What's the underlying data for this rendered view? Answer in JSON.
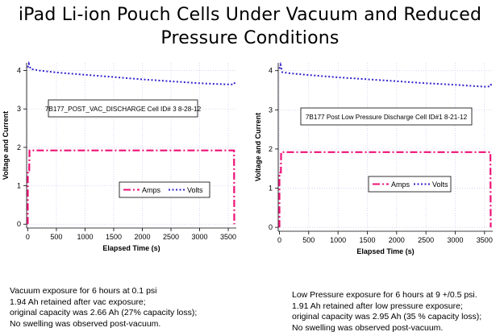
{
  "title": {
    "line1": "iPad Li-ion Pouch Cells Under Vacuum and Reduced",
    "line2": "Pressure Conditions"
  },
  "chart_data": [
    {
      "type": "line",
      "annotation": "7B177_POST_VAC_DISCHARGE Cell ID# 3 8-28-12",
      "xlabel": "Elapsed Time (s)",
      "ylabel": "Voltage and Current",
      "xlim": [
        -20,
        3640
      ],
      "ylim": [
        -0.1,
        4.2
      ],
      "xticks": [
        0,
        500,
        1000,
        1500,
        2000,
        2500,
        3000,
        3500
      ],
      "yticks": [
        0,
        1,
        2,
        3,
        4
      ],
      "legend": {
        "position": "lower-center",
        "entries": [
          "Amps",
          "Volts"
        ]
      },
      "grid": true,
      "series": [
        {
          "name": "Amps",
          "color": "#ee1177",
          "style": "dash-dot",
          "x": [
            0,
            1,
            25,
            30,
            3590,
            3600,
            3605
          ],
          "y": [
            0,
            1.4,
            1.4,
            1.92,
            1.92,
            1.92,
            0
          ]
        },
        {
          "name": "Volts",
          "color": "#3322cc",
          "style": "dotted",
          "x": [
            0,
            20,
            50,
            200,
            500,
            1000,
            1500,
            2000,
            2500,
            3000,
            3300,
            3500,
            3600,
            3620
          ],
          "y": [
            4.08,
            4.18,
            4.04,
            4.0,
            3.95,
            3.89,
            3.83,
            3.77,
            3.72,
            3.67,
            3.65,
            3.64,
            3.64,
            3.71
          ]
        }
      ]
    },
    {
      "type": "line",
      "annotation": "7B177 Post Low Pressure Discharge Cell ID#1 8-21-12",
      "xlabel": "Elapsed Time (s)",
      "ylabel": "Voltage and Current",
      "xlim": [
        -20,
        3640
      ],
      "ylim": [
        -0.1,
        4.2
      ],
      "xticks": [
        0,
        500,
        1000,
        1500,
        2000,
        2500,
        3000,
        3500
      ],
      "yticks": [
        0,
        1,
        2,
        3,
        4
      ],
      "legend": {
        "position": "lower-center",
        "entries": [
          "Amps",
          "Volts"
        ]
      },
      "grid": true,
      "series": [
        {
          "name": "Amps",
          "color": "#ee1177",
          "style": "dash-dot",
          "x": [
            0,
            1,
            25,
            30,
            3590,
            3600,
            3605
          ],
          "y": [
            0,
            1.4,
            1.4,
            1.92,
            1.92,
            1.92,
            0
          ]
        },
        {
          "name": "Volts",
          "color": "#3322cc",
          "style": "dotted",
          "x": [
            0,
            20,
            50,
            200,
            500,
            1000,
            1500,
            2000,
            2500,
            3000,
            3300,
            3500,
            3600,
            3620
          ],
          "y": [
            4.05,
            4.15,
            3.96,
            3.93,
            3.89,
            3.83,
            3.78,
            3.73,
            3.68,
            3.64,
            3.61,
            3.59,
            3.6,
            3.68
          ]
        }
      ]
    }
  ],
  "captions": [
    {
      "lines": [
        "Vacuum exposure for 6 hours at 0.1 psi",
        "1.94 Ah retained after vac exposure;",
        "original capacity was 2.66 Ah (27% capacity loss);",
        "No swelling was observed post-vacuum."
      ]
    },
    {
      "lines": [
        "Low Pressure exposure for 6 hours at 9 +/0.5 psi.",
        "1.91 Ah retained after low pressure exposure;",
        "original capacity was 2.95 Ah (35 % capacity loss);",
        "No swelling  was observed post-vacuum."
      ]
    }
  ]
}
